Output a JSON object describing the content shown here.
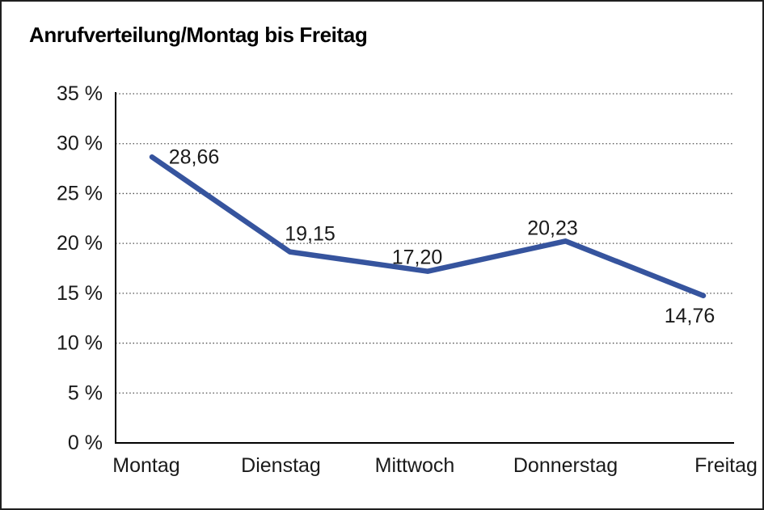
{
  "title": "Anrufverteilung/Montag bis Freitag",
  "chart_data": {
    "type": "line",
    "title": "Anrufverteilung/Montag bis Freitag",
    "categories": [
      "Montag",
      "Dienstag",
      "Mittwoch",
      "Donnerstag",
      "Freitag"
    ],
    "series": [
      {
        "name": "Anrufverteilung",
        "values": [
          28.66,
          19.15,
          17.2,
          20.23,
          14.76
        ]
      }
    ],
    "point_labels": [
      "28,66",
      "19,15",
      "17,20",
      "20,23",
      "14,76"
    ],
    "y_ticks": [
      {
        "value": 0,
        "label": "0 %"
      },
      {
        "value": 5,
        "label": "5 %"
      },
      {
        "value": 10,
        "label": "10 %"
      },
      {
        "value": 15,
        "label": "15 %"
      },
      {
        "value": 20,
        "label": "20 %"
      },
      {
        "value": 25,
        "label": "25 %"
      },
      {
        "value": 30,
        "label": "30 %"
      },
      {
        "value": 35,
        "label": "35 %"
      }
    ],
    "ylim": [
      0,
      35
    ],
    "xlabel": "",
    "ylabel": "",
    "grid": "dotted-horizontal",
    "legend": "none",
    "line_color": "#36549E",
    "text_color": "#1A1A1A",
    "grid_color": "#4D4D4D",
    "axis_color": "#000000",
    "background": "#FFFFFF"
  }
}
